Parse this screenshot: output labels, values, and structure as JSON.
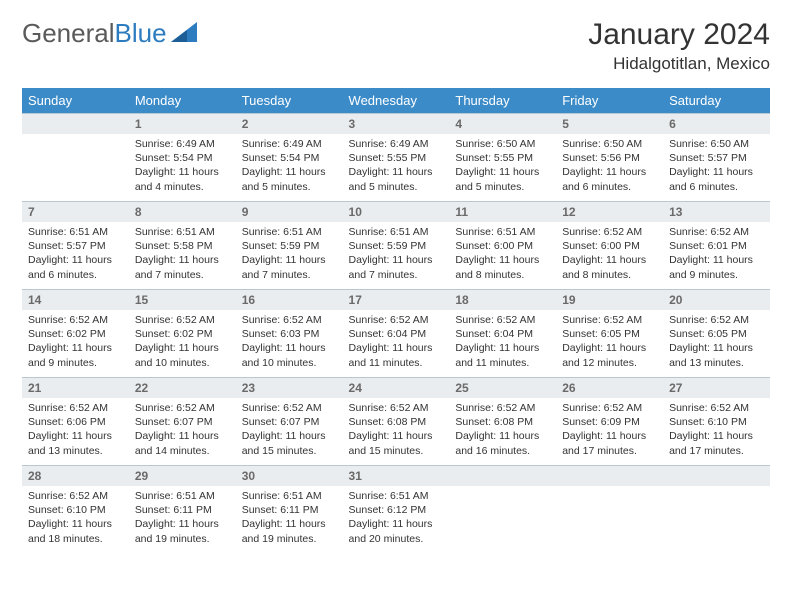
{
  "logo": {
    "text1": "General",
    "text2": "Blue"
  },
  "title": "January 2024",
  "location": "Hidalgotitlan, Mexico",
  "colors": {
    "header_bg": "#3b8bc9",
    "header_text": "#ffffff",
    "daynum_bg": "#e9edef",
    "border": "#b8c7d4",
    "logo_blue": "#2e7cc0"
  },
  "weekdays": [
    "Sunday",
    "Monday",
    "Tuesday",
    "Wednesday",
    "Thursday",
    "Friday",
    "Saturday"
  ],
  "weeks": [
    [
      null,
      {
        "n": "1",
        "sr": "6:49 AM",
        "ss": "5:54 PM",
        "dl": "11 hours and 4 minutes."
      },
      {
        "n": "2",
        "sr": "6:49 AM",
        "ss": "5:54 PM",
        "dl": "11 hours and 5 minutes."
      },
      {
        "n": "3",
        "sr": "6:49 AM",
        "ss": "5:55 PM",
        "dl": "11 hours and 5 minutes."
      },
      {
        "n": "4",
        "sr": "6:50 AM",
        "ss": "5:55 PM",
        "dl": "11 hours and 5 minutes."
      },
      {
        "n": "5",
        "sr": "6:50 AM",
        "ss": "5:56 PM",
        "dl": "11 hours and 6 minutes."
      },
      {
        "n": "6",
        "sr": "6:50 AM",
        "ss": "5:57 PM",
        "dl": "11 hours and 6 minutes."
      }
    ],
    [
      {
        "n": "7",
        "sr": "6:51 AM",
        "ss": "5:57 PM",
        "dl": "11 hours and 6 minutes."
      },
      {
        "n": "8",
        "sr": "6:51 AM",
        "ss": "5:58 PM",
        "dl": "11 hours and 7 minutes."
      },
      {
        "n": "9",
        "sr": "6:51 AM",
        "ss": "5:59 PM",
        "dl": "11 hours and 7 minutes."
      },
      {
        "n": "10",
        "sr": "6:51 AM",
        "ss": "5:59 PM",
        "dl": "11 hours and 7 minutes."
      },
      {
        "n": "11",
        "sr": "6:51 AM",
        "ss": "6:00 PM",
        "dl": "11 hours and 8 minutes."
      },
      {
        "n": "12",
        "sr": "6:52 AM",
        "ss": "6:00 PM",
        "dl": "11 hours and 8 minutes."
      },
      {
        "n": "13",
        "sr": "6:52 AM",
        "ss": "6:01 PM",
        "dl": "11 hours and 9 minutes."
      }
    ],
    [
      {
        "n": "14",
        "sr": "6:52 AM",
        "ss": "6:02 PM",
        "dl": "11 hours and 9 minutes."
      },
      {
        "n": "15",
        "sr": "6:52 AM",
        "ss": "6:02 PM",
        "dl": "11 hours and 10 minutes."
      },
      {
        "n": "16",
        "sr": "6:52 AM",
        "ss": "6:03 PM",
        "dl": "11 hours and 10 minutes."
      },
      {
        "n": "17",
        "sr": "6:52 AM",
        "ss": "6:04 PM",
        "dl": "11 hours and 11 minutes."
      },
      {
        "n": "18",
        "sr": "6:52 AM",
        "ss": "6:04 PM",
        "dl": "11 hours and 11 minutes."
      },
      {
        "n": "19",
        "sr": "6:52 AM",
        "ss": "6:05 PM",
        "dl": "11 hours and 12 minutes."
      },
      {
        "n": "20",
        "sr": "6:52 AM",
        "ss": "6:05 PM",
        "dl": "11 hours and 13 minutes."
      }
    ],
    [
      {
        "n": "21",
        "sr": "6:52 AM",
        "ss": "6:06 PM",
        "dl": "11 hours and 13 minutes."
      },
      {
        "n": "22",
        "sr": "6:52 AM",
        "ss": "6:07 PM",
        "dl": "11 hours and 14 minutes."
      },
      {
        "n": "23",
        "sr": "6:52 AM",
        "ss": "6:07 PM",
        "dl": "11 hours and 15 minutes."
      },
      {
        "n": "24",
        "sr": "6:52 AM",
        "ss": "6:08 PM",
        "dl": "11 hours and 15 minutes."
      },
      {
        "n": "25",
        "sr": "6:52 AM",
        "ss": "6:08 PM",
        "dl": "11 hours and 16 minutes."
      },
      {
        "n": "26",
        "sr": "6:52 AM",
        "ss": "6:09 PM",
        "dl": "11 hours and 17 minutes."
      },
      {
        "n": "27",
        "sr": "6:52 AM",
        "ss": "6:10 PM",
        "dl": "11 hours and 17 minutes."
      }
    ],
    [
      {
        "n": "28",
        "sr": "6:52 AM",
        "ss": "6:10 PM",
        "dl": "11 hours and 18 minutes."
      },
      {
        "n": "29",
        "sr": "6:51 AM",
        "ss": "6:11 PM",
        "dl": "11 hours and 19 minutes."
      },
      {
        "n": "30",
        "sr": "6:51 AM",
        "ss": "6:11 PM",
        "dl": "11 hours and 19 minutes."
      },
      {
        "n": "31",
        "sr": "6:51 AM",
        "ss": "6:12 PM",
        "dl": "11 hours and 20 minutes."
      },
      null,
      null,
      null
    ]
  ],
  "labels": {
    "sunrise": "Sunrise:",
    "sunset": "Sunset:",
    "daylight": "Daylight:"
  }
}
